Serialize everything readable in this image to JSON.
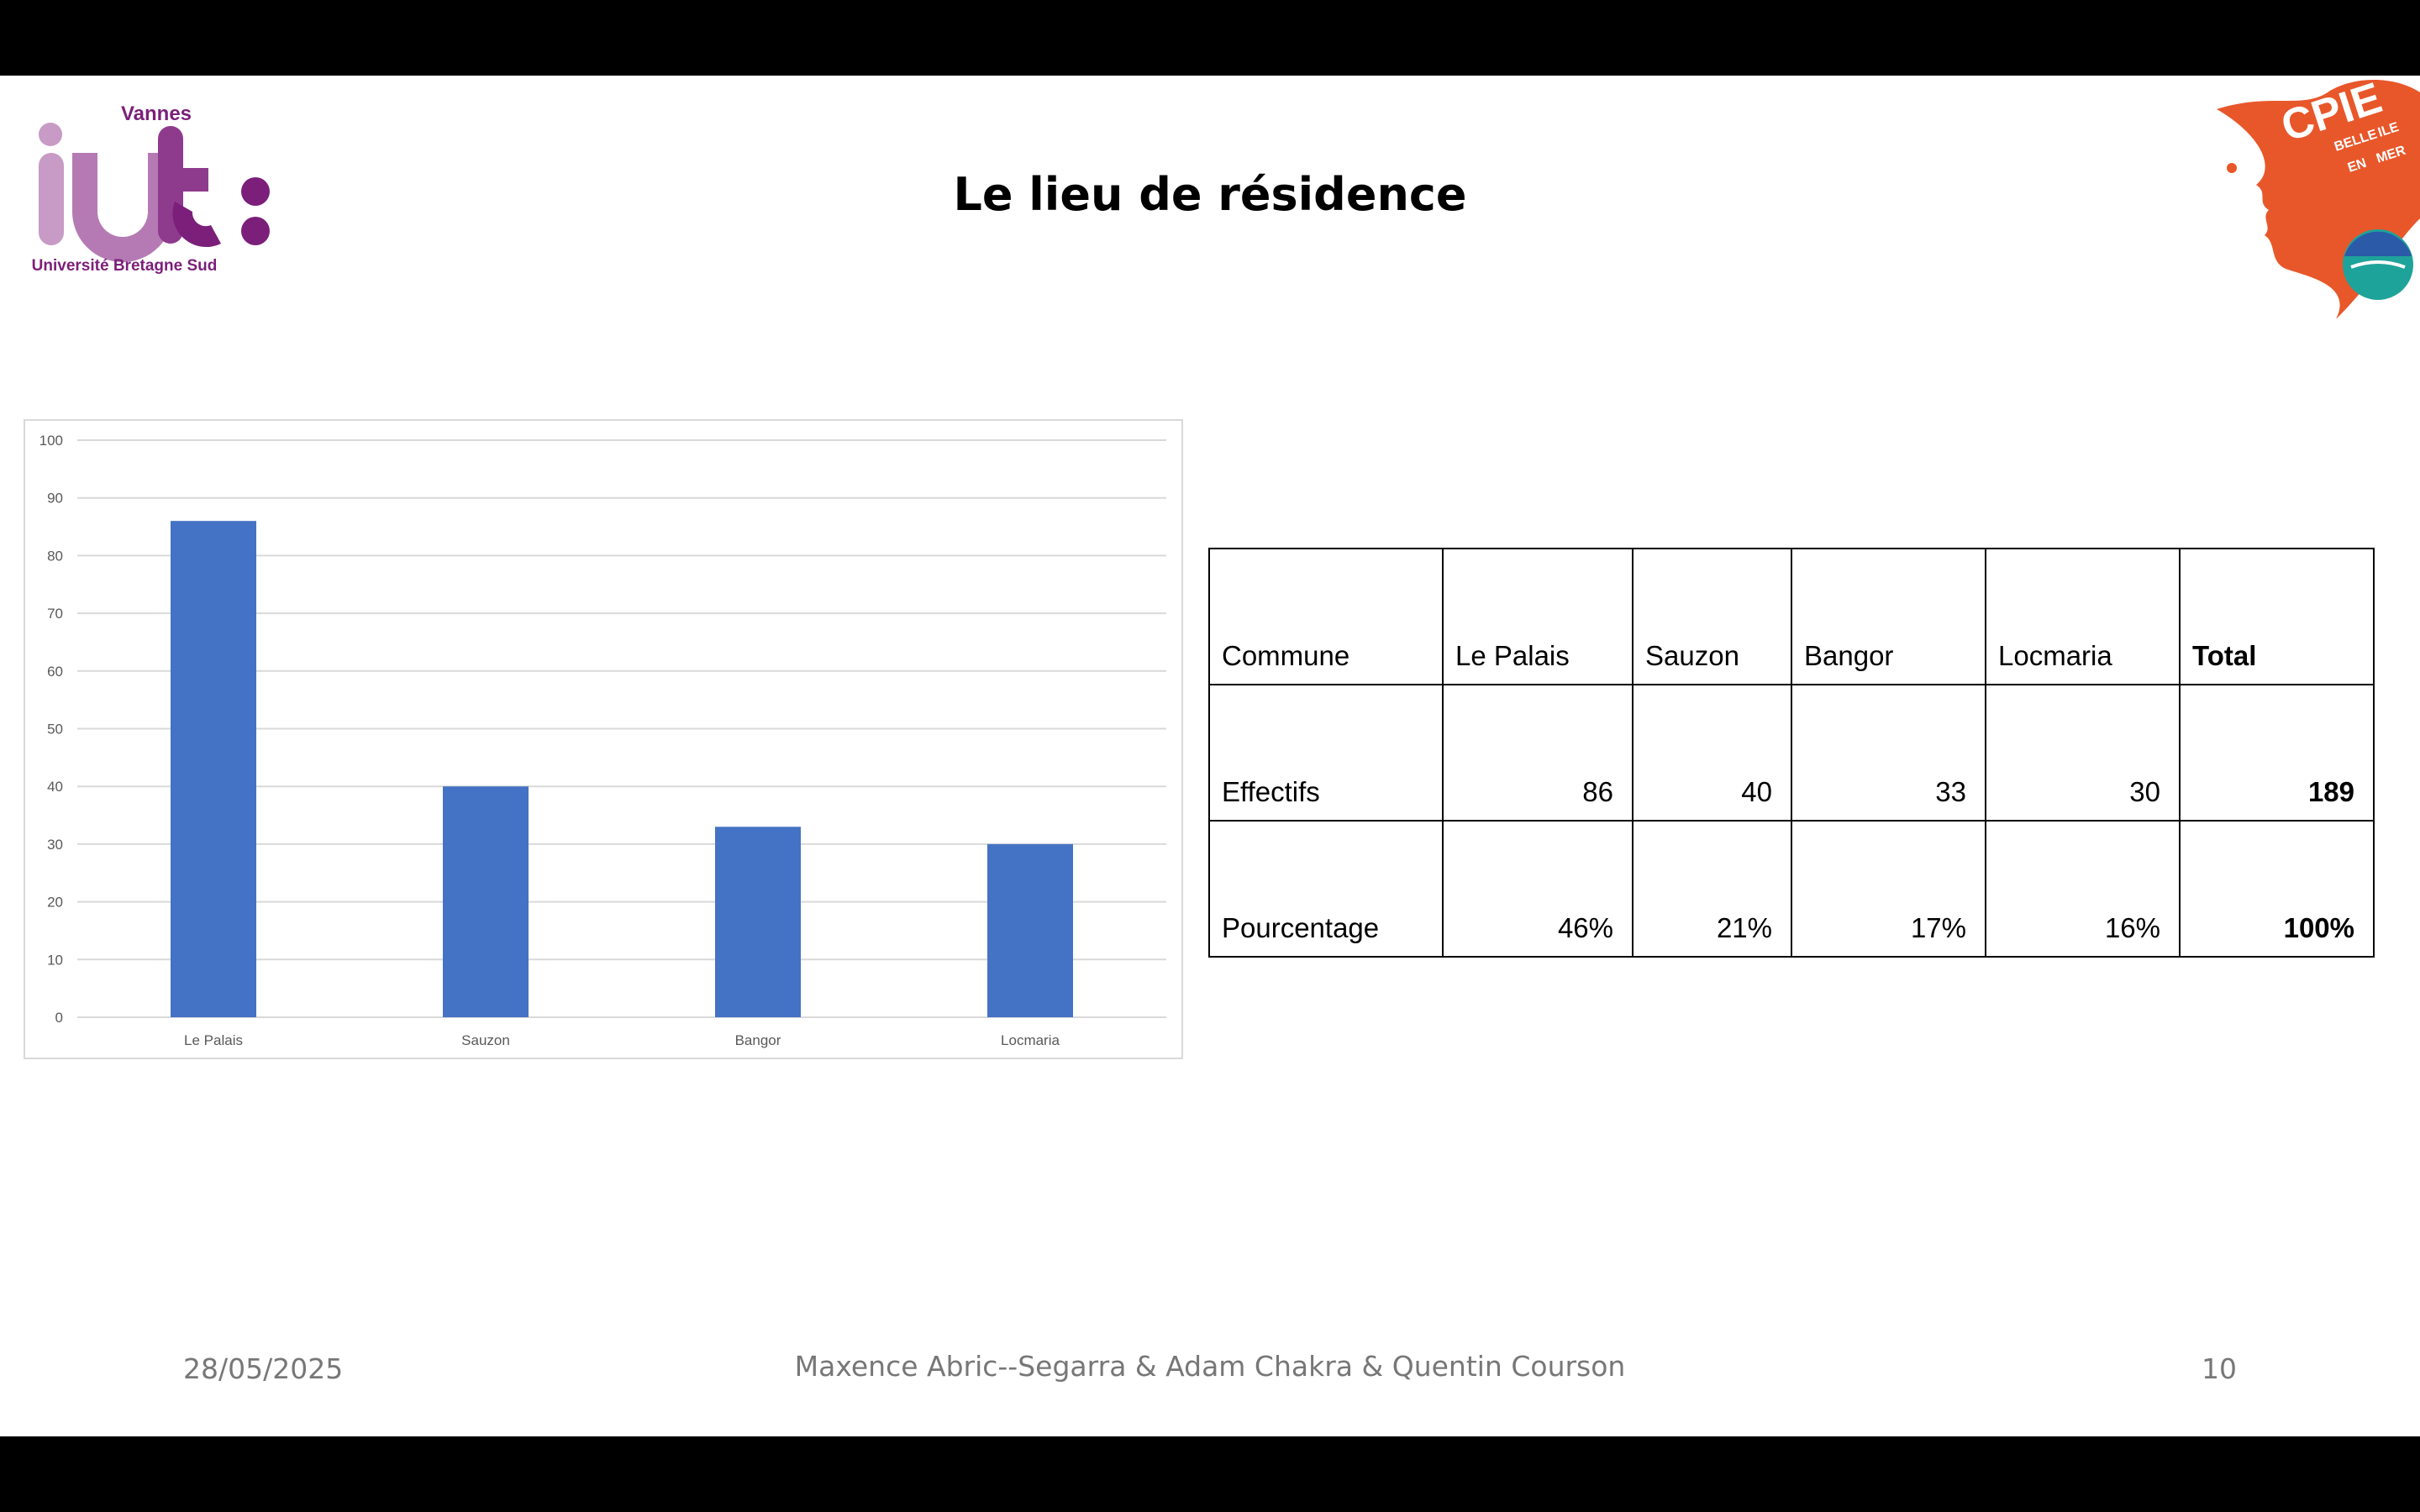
{
  "slide": {
    "title": "Le lieu de résidence",
    "footer": {
      "date": "28/05/2025",
      "authors": "Maxence Abric--Segarra & Adam Chakra & Quentin Courson",
      "page_number": "10"
    }
  },
  "logos": {
    "iut": {
      "top_text": "Vannes",
      "bottom_text": "Université Bretagne Sud",
      "color": "#7b1f7a"
    },
    "cpie": {
      "text": "CPIE",
      "subtext_1": "BELLE",
      "subtext_2": "ILE",
      "subtext_3": "EN",
      "subtext_4": "MER",
      "color": "#e8572a"
    }
  },
  "chart_data": {
    "type": "bar",
    "categories": [
      "Le Palais",
      "Sauzon",
      "Bangor",
      "Locmaria"
    ],
    "values": [
      86,
      40,
      33,
      30
    ],
    "ylim": [
      0,
      100
    ],
    "yticks": [
      0,
      10,
      20,
      30,
      40,
      50,
      60,
      70,
      80,
      90,
      100
    ],
    "grid": true,
    "bar_color": "#4472c4"
  },
  "table": {
    "rows": [
      {
        "label": "Commune",
        "cells": [
          "Le Palais",
          "Sauzon",
          "Bangor",
          "Locmaria"
        ],
        "total": "Total"
      },
      {
        "label": "Effectifs",
        "cells": [
          "86",
          "40",
          "33",
          "30"
        ],
        "total": "189"
      },
      {
        "label": "Pourcentage",
        "cells": [
          "46%",
          "21%",
          "17%",
          "16%"
        ],
        "total": "100%"
      }
    ]
  }
}
